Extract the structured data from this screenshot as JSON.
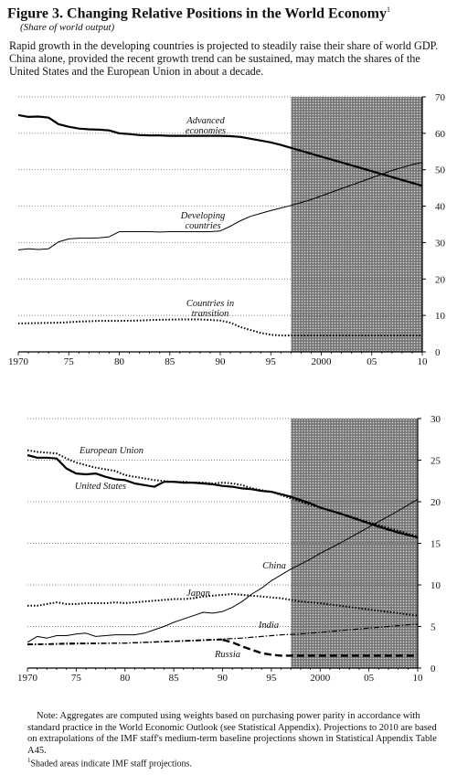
{
  "figure": {
    "title": "Figure 3.  Changing Relative Positions in the World Economy",
    "title_footnote_mark": "1",
    "subtitle": "(Share of world output)",
    "intro": "Rapid growth in the developing countries is projected to steadily raise their share of world GDP.  China alone, provided the recent growth trend can be sustained, may match the shares of the United States and the European Union in about a decade."
  },
  "note": {
    "prefix": "Note:",
    "text": "Aggregates are computed using weights based on purchasing power parity in accordance with standard practice in the World Economic Outlook (see Statistical Appendix).  Projections to 2010 are based on extrapolations of the IMF staff's medium-term baseline projections shown in Statistical Appendix Table A45.",
    "footnote_mark": "1",
    "footnote": "Shaded areas indicate IMF staff projections."
  },
  "chart_data": [
    {
      "type": "line",
      "xlim": [
        1970,
        2010
      ],
      "ylim": [
        0,
        70
      ],
      "x_ticks": [
        1970,
        1975,
        1980,
        1985,
        1990,
        1995,
        2000,
        2005,
        2010
      ],
      "x_tick_labels": [
        "1970",
        "75",
        "80",
        "85",
        "90",
        "95",
        "2000",
        "05",
        "10"
      ],
      "y_ticks": [
        0,
        10,
        20,
        30,
        40,
        50,
        60,
        70
      ],
      "y_tick_labels": [
        "0",
        "10",
        "20",
        "30",
        "40",
        "50",
        "60",
        "70"
      ],
      "projection_shade": [
        1997,
        2010
      ],
      "grid": "horizontal dotted",
      "series": [
        {
          "name": "Advanced economies",
          "style": "solid-thick",
          "x": [
            1970,
            1971,
            1972,
            1973,
            1974,
            1975,
            1976,
            1977,
            1978,
            1979,
            1980,
            1981,
            1982,
            1983,
            1984,
            1985,
            1986,
            1987,
            1988,
            1989,
            1990,
            1991,
            1992,
            1993,
            1994,
            1995,
            1996,
            1997,
            1998,
            1999,
            2000,
            2001,
            2002,
            2003,
            2004,
            2005,
            2006,
            2007,
            2008,
            2009,
            2010
          ],
          "values": [
            65,
            64.5,
            64.6,
            64.3,
            62.5,
            61.8,
            61.3,
            61.1,
            61.0,
            60.8,
            60.0,
            59.8,
            59.5,
            59.4,
            59.4,
            59.3,
            59.3,
            59.3,
            59.3,
            59.3,
            59.3,
            59.2,
            59.0,
            58.5,
            58.0,
            57.5,
            56.8,
            56.0,
            55.2,
            54.4,
            53.6,
            52.8,
            52.0,
            51.2,
            50.4,
            49.6,
            48.8,
            48.0,
            47.2,
            46.4,
            45.6
          ]
        },
        {
          "name": "Developing countries",
          "style": "solid-thin",
          "x": [
            1970,
            1971,
            1972,
            1973,
            1974,
            1975,
            1976,
            1977,
            1978,
            1979,
            1980,
            1981,
            1982,
            1983,
            1984,
            1985,
            1986,
            1987,
            1988,
            1989,
            1990,
            1991,
            1992,
            1993,
            1994,
            1995,
            1996,
            1997,
            1998,
            1999,
            2000,
            2001,
            2002,
            2003,
            2004,
            2005,
            2006,
            2007,
            2008,
            2009,
            2010
          ],
          "values": [
            28,
            28.3,
            28.1,
            28.3,
            30.2,
            31.0,
            31.2,
            31.2,
            31.3,
            31.6,
            33.0,
            33.0,
            33.0,
            33.0,
            32.9,
            33.0,
            33.0,
            33.0,
            33.0,
            33.0,
            33.2,
            34.5,
            36.0,
            37.2,
            38.0,
            38.8,
            39.5,
            40.2,
            41.0,
            41.8,
            42.8,
            43.8,
            44.8,
            45.8,
            46.8,
            47.8,
            48.8,
            49.8,
            50.6,
            51.4,
            52.0
          ]
        },
        {
          "name": "Countries in transition",
          "style": "dotted",
          "x": [
            1970,
            1972,
            1974,
            1976,
            1978,
            1980,
            1982,
            1984,
            1986,
            1988,
            1990,
            1991,
            1992,
            1993,
            1994,
            1995,
            1996,
            1998,
            2000,
            2002,
            2004,
            2006,
            2008,
            2010
          ],
          "values": [
            7.8,
            7.9,
            8.0,
            8.3,
            8.5,
            8.5,
            8.6,
            8.8,
            8.9,
            8.9,
            8.6,
            8.0,
            6.8,
            6.0,
            5.2,
            4.7,
            4.5,
            4.5,
            4.5,
            4.5,
            4.5,
            4.5,
            4.5,
            4.5
          ]
        }
      ],
      "annotations": {
        "advanced": [
          "Advanced",
          "economies"
        ],
        "developing": [
          "Developing",
          "countries"
        ],
        "transition": [
          "Countries in",
          "transition"
        ]
      }
    },
    {
      "type": "line",
      "xlim": [
        1970,
        2010
      ],
      "ylim": [
        0,
        30
      ],
      "x_ticks": [
        1970,
        1975,
        1980,
        1985,
        1990,
        1995,
        2000,
        2005,
        2010
      ],
      "x_tick_labels": [
        "1970",
        "75",
        "80",
        "85",
        "90",
        "95",
        "2000",
        "05",
        "10"
      ],
      "y_ticks": [
        0,
        5,
        10,
        15,
        20,
        25,
        30
      ],
      "y_tick_labels": [
        "0",
        "5",
        "10",
        "15",
        "20",
        "25",
        "30"
      ],
      "projection_shade": [
        1997,
        2010
      ],
      "grid": "horizontal dotted",
      "series": [
        {
          "name": "European Union",
          "style": "dotted",
          "x": [
            1970,
            1971,
            1972,
            1973,
            1974,
            1975,
            1976,
            1977,
            1978,
            1979,
            1980,
            1981,
            1982,
            1983,
            1984,
            1985,
            1986,
            1987,
            1988,
            1989,
            1990,
            1991,
            1992,
            1993,
            1994,
            1995,
            1996,
            1997,
            1998,
            1999,
            2000,
            2002,
            2004,
            2006,
            2008,
            2010
          ],
          "values": [
            26.2,
            26.0,
            25.9,
            25.8,
            25.2,
            24.7,
            24.4,
            24.1,
            23.9,
            23.7,
            23.2,
            23.0,
            22.8,
            22.6,
            22.5,
            22.4,
            22.4,
            22.3,
            22.3,
            22.2,
            22.3,
            22.2,
            22.0,
            21.6,
            21.4,
            21.2,
            20.8,
            20.4,
            20.0,
            19.6,
            19.3,
            18.6,
            17.9,
            17.2,
            16.5,
            15.8
          ]
        },
        {
          "name": "United States",
          "style": "solid-thick",
          "x": [
            1970,
            1971,
            1972,
            1973,
            1974,
            1975,
            1976,
            1977,
            1978,
            1979,
            1980,
            1981,
            1982,
            1983,
            1984,
            1985,
            1986,
            1987,
            1988,
            1989,
            1990,
            1991,
            1992,
            1993,
            1994,
            1995,
            1996,
            1997,
            1998,
            1999,
            2000,
            2002,
            2004,
            2006,
            2008,
            2010
          ],
          "values": [
            25.6,
            25.3,
            25.3,
            25.2,
            24.0,
            23.4,
            23.3,
            23.4,
            23.0,
            22.7,
            22.6,
            22.2,
            22.0,
            21.8,
            22.4,
            22.4,
            22.3,
            22.3,
            22.2,
            22.1,
            21.9,
            21.8,
            21.6,
            21.5,
            21.3,
            21.2,
            20.9,
            20.6,
            20.2,
            19.8,
            19.3,
            18.6,
            17.8,
            17.0,
            16.3,
            15.7
          ]
        },
        {
          "name": "China",
          "style": "solid-thin",
          "x": [
            1970,
            1971,
            1972,
            1973,
            1974,
            1975,
            1976,
            1977,
            1978,
            1979,
            1980,
            1981,
            1982,
            1983,
            1984,
            1985,
            1986,
            1987,
            1988,
            1989,
            1990,
            1991,
            1992,
            1993,
            1994,
            1995,
            1996,
            1997,
            1998,
            1999,
            2000,
            2002,
            2004,
            2006,
            2008,
            2010
          ],
          "values": [
            3.1,
            3.8,
            3.6,
            3.9,
            3.9,
            4.1,
            4.2,
            3.8,
            3.9,
            4.0,
            4.0,
            4.0,
            4.2,
            4.6,
            5.0,
            5.5,
            5.9,
            6.3,
            6.7,
            6.6,
            6.8,
            7.3,
            8.0,
            8.9,
            9.6,
            10.5,
            11.2,
            11.9,
            12.5,
            13.1,
            13.8,
            15.0,
            16.3,
            17.6,
            18.9,
            20.3
          ]
        },
        {
          "name": "Japan",
          "style": "dotted",
          "x": [
            1970,
            1971,
            1972,
            1973,
            1974,
            1975,
            1976,
            1977,
            1978,
            1979,
            1980,
            1981,
            1982,
            1983,
            1984,
            1985,
            1986,
            1987,
            1988,
            1989,
            1990,
            1991,
            1992,
            1993,
            1994,
            1995,
            1996,
            1997,
            1998,
            1999,
            2000,
            2002,
            2004,
            2006,
            2008,
            2010
          ],
          "values": [
            7.5,
            7.5,
            7.7,
            7.9,
            7.7,
            7.7,
            7.8,
            7.8,
            7.8,
            7.9,
            7.8,
            7.9,
            8.0,
            8.1,
            8.2,
            8.3,
            8.3,
            8.4,
            8.6,
            8.7,
            8.8,
            8.9,
            8.8,
            8.7,
            8.6,
            8.5,
            8.4,
            8.2,
            8.0,
            7.9,
            7.8,
            7.5,
            7.2,
            6.9,
            6.6,
            6.3
          ]
        },
        {
          "name": "India",
          "style": "dash-dot",
          "x": [
            1970,
            1972,
            1974,
            1976,
            1978,
            1980,
            1982,
            1984,
            1986,
            1988,
            1990,
            1992,
            1994,
            1996,
            1998,
            2000,
            2002,
            2004,
            2006,
            2008,
            2010
          ],
          "values": [
            2.9,
            2.9,
            3.0,
            3.0,
            3.0,
            3.0,
            3.1,
            3.2,
            3.3,
            3.4,
            3.5,
            3.6,
            3.8,
            4.0,
            4.1,
            4.3,
            4.5,
            4.7,
            4.9,
            5.1,
            5.3
          ]
        },
        {
          "name": "Russia",
          "style": "dashed-thick",
          "x": [
            1990,
            1991,
            1992,
            1993,
            1994,
            1995,
            1996,
            1998,
            2000,
            2002,
            2004,
            2006,
            2008,
            2010
          ],
          "values": [
            3.4,
            3.1,
            2.6,
            2.2,
            1.8,
            1.6,
            1.5,
            1.5,
            1.5,
            1.5,
            1.5,
            1.5,
            1.5,
            1.5
          ]
        }
      ],
      "early_segment_note": "Russia segment 1970-1989 drawn dashed near 3",
      "russia_early": {
        "x": [
          1970,
          1975,
          1980,
          1985,
          1990
        ],
        "values": [
          2.8,
          2.9,
          3.0,
          3.2,
          3.4
        ]
      },
      "annotations": {
        "eu": [
          "European Union"
        ],
        "us": [
          "United States"
        ],
        "china": [
          "China"
        ],
        "japan": [
          "Japan"
        ],
        "india": [
          "India"
        ],
        "russia": [
          "Russia"
        ]
      }
    }
  ]
}
